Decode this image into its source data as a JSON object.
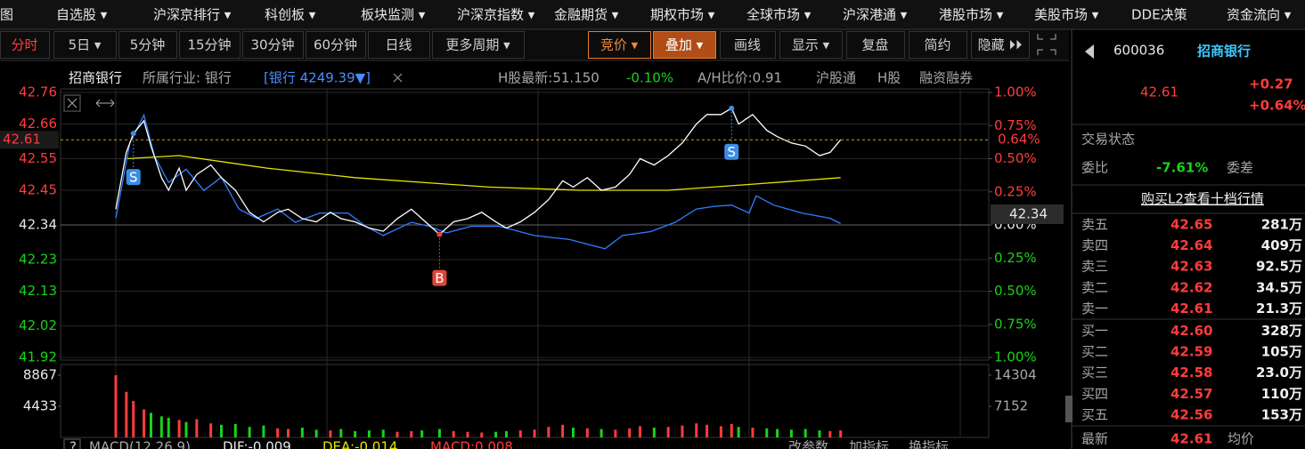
{
  "menu": [
    "图",
    "自选股 ▾",
    "沪深京排行 ▾",
    "科创板 ▾",
    "板块监测 ▾",
    "沪深京指数 ▾",
    "金融期货 ▾",
    "期权市场 ▾",
    "全球市场 ▾",
    "沪深港通 ▾",
    "港股市场 ▾",
    "美股市场 ▾",
    "DDE决策",
    "资金流向 ▾"
  ],
  "toolbar_left": [
    "分时",
    "5日 ▾",
    "5分钟",
    "15分钟",
    "30分钟",
    "60分钟",
    "日线",
    "更多周期 ▾"
  ],
  "toolbar_right": [
    "竞价 ▾",
    "叠加 ▾",
    "画线",
    "显示 ▾",
    "复盘",
    "简约",
    "隐藏 ⏵⏵"
  ],
  "header": [
    "招商银行",
    "所属行业: 银行",
    "[银行 4249.39▼]",
    "H股最新:51.150",
    "-0.10%",
    "A/H比价:0.91",
    "沪股通",
    "H股",
    "融资融券"
  ],
  "intraday": {
    "type": "line",
    "xlim": [
      0,
      240
    ],
    "xticks": [
      0,
      60,
      120,
      180,
      240
    ],
    "ylim": [
      41.92,
      42.76
    ],
    "yticks": [
      42.76,
      42.66,
      42.55,
      42.45,
      42.34,
      42.23,
      42.13,
      42.02,
      41.92
    ],
    "y2lim": [
      -1,
      1
    ],
    "y2ticks": [
      {
        "value": 1,
        "label": "1.00%"
      },
      {
        "value": 0.75,
        "label": "0.75%"
      },
      {
        "value": 0.5,
        "label": "0.50%"
      },
      {
        "value": 0.25,
        "label": "0.25%"
      },
      {
        "value": 0,
        "label": "0.00%"
      },
      {
        "value": -0.25,
        "label": "0.25%"
      },
      {
        "value": -0.5,
        "label": "0.50%"
      },
      {
        "value": -0.75,
        "label": "0.75%"
      },
      {
        "value": -1,
        "label": "1.00%"
      }
    ],
    "prev_close": 42.34,
    "current": 42.61,
    "current_pct": "0.64%",
    "grid": true,
    "price": {
      "color": "#ffffff",
      "x": [
        0,
        3,
        5,
        8,
        10,
        13,
        15,
        18,
        20,
        23,
        27,
        30,
        34,
        38,
        42,
        46,
        49,
        53,
        57,
        61,
        64,
        68,
        72,
        76,
        80,
        84,
        87,
        92,
        96,
        100,
        104,
        108,
        111,
        115,
        119,
        123,
        127,
        130,
        134,
        138,
        142,
        146,
        149,
        153,
        157,
        161,
        165,
        168,
        172,
        175,
        177,
        181,
        185,
        188,
        192,
        196,
        200,
        203,
        206
      ],
      "values": [
        42.39,
        42.57,
        42.63,
        42.67,
        42.59,
        42.49,
        42.45,
        42.52,
        42.45,
        42.5,
        42.53,
        42.49,
        42.45,
        42.38,
        42.35,
        42.38,
        42.39,
        42.36,
        42.35,
        42.38,
        42.36,
        42.35,
        42.33,
        42.32,
        42.36,
        42.39,
        42.36,
        42.31,
        42.35,
        42.36,
        42.38,
        42.35,
        42.33,
        42.35,
        42.38,
        42.42,
        42.48,
        42.46,
        42.49,
        42.45,
        42.46,
        42.5,
        42.55,
        42.53,
        42.56,
        42.6,
        42.66,
        42.69,
        42.69,
        42.71,
        42.66,
        42.69,
        42.64,
        42.62,
        42.6,
        42.59,
        42.56,
        42.57,
        42.61
      ]
    },
    "average": {
      "color": "#e6e600",
      "x": [
        3,
        18,
        43,
        68,
        106,
        132,
        157,
        182,
        206
      ],
      "values": [
        42.55,
        42.56,
        42.52,
        42.49,
        42.46,
        42.45,
        42.45,
        42.47,
        42.49
      ]
    },
    "index": {
      "color": "#2f7fff",
      "axis": "y2",
      "x": [
        0,
        4,
        8,
        11,
        15,
        20,
        25,
        30,
        35,
        40,
        46,
        51,
        58,
        66,
        71,
        76,
        84,
        89,
        94,
        101,
        109,
        119,
        129,
        139,
        144,
        152,
        159,
        165,
        170,
        175,
        180,
        182,
        187,
        195,
        203,
        206
      ],
      "values": [
        0.05,
        0.62,
        0.83,
        0.52,
        0.32,
        0.42,
        0.26,
        0.36,
        0.12,
        0.05,
        0.12,
        0.02,
        0.09,
        0.09,
        -0.01,
        -0.08,
        0.02,
        -0.01,
        -0.06,
        -0.01,
        -0.01,
        -0.08,
        -0.11,
        -0.18,
        -0.08,
        -0.05,
        0.02,
        0.12,
        0.14,
        0.15,
        0.09,
        0.22,
        0.15,
        0.09,
        0.05,
        0.01
      ]
    },
    "signals": [
      {
        "label": "S",
        "x": 5,
        "value": 42.63
      },
      {
        "label": "S",
        "x": 175,
        "value": 42.71
      },
      {
        "label": "B",
        "x": 92,
        "value": 42.31
      }
    ]
  },
  "volume": {
    "type": "bar",
    "ylim": [
      0,
      8867
    ],
    "yticks": [
      8867,
      4433
    ],
    "y2lim": [
      0,
      14304
    ],
    "y2ticks": [
      14304,
      7152
    ],
    "values": [
      8867,
      6500,
      5200,
      4000,
      3500,
      3000,
      2800,
      2500,
      2200,
      2600,
      2000,
      1800,
      1900,
      1500,
      1700,
      1300,
      1200,
      1400,
      1100,
      1000,
      1200,
      900,
      1000,
      1100,
      800,
      900,
      1000,
      1200,
      900,
      800,
      700,
      800,
      900,
      1000,
      1100,
      1500,
      1800,
      1400,
      1300,
      1200,
      1100,
      1300,
      1600,
      1400,
      1500,
      1700,
      2000,
      1800,
      1600,
      1900,
      1500,
      1400,
      1300,
      1200,
      1100,
      1200,
      1000,
      900,
      1000
    ]
  },
  "macd_bar": [
    "?",
    "MACD(12,26,9)",
    "DIF:-0.009",
    "DEA:-0.014",
    "MACD:0.008",
    "改参数",
    "加指标",
    "换指标"
  ],
  "quote": {
    "code": "600036",
    "name": "招商银行",
    "price": "42.61",
    "change": "+0.27",
    "change_pct": "+0.64%",
    "status_label": "交易状态",
    "ratio_label": "委比",
    "ratio": "-7.61%",
    "diff_label": "委差",
    "l2_link": "购买L2查看十档行情",
    "book": [
      [
        "卖五",
        "42.65",
        "281万"
      ],
      [
        "卖四",
        "42.64",
        "409万"
      ],
      [
        "卖三",
        "42.63",
        "92.5万"
      ],
      [
        "卖二",
        "42.62",
        "34.5万"
      ],
      [
        "卖一",
        "42.61",
        "21.3万"
      ],
      [
        "买一",
        "42.60",
        "328万"
      ],
      [
        "买二",
        "42.59",
        "105万"
      ],
      [
        "买三",
        "42.58",
        "23.0万"
      ],
      [
        "买四",
        "42.57",
        "110万"
      ],
      [
        "买五",
        "42.56",
        "153万"
      ]
    ],
    "last": [
      "最新",
      "42.61",
      "均价"
    ]
  }
}
